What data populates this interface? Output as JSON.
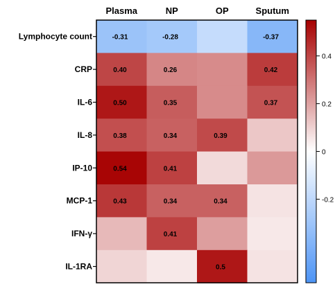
{
  "chart_data": {
    "type": "heatmap",
    "columns": [
      "Plasma",
      "NP",
      "OP",
      "Sputum"
    ],
    "rows": [
      "Lymphocyte count",
      "CRP",
      "IL-6",
      "IL-8",
      "IP-10",
      "MCP-1",
      "IFN-γ",
      "IL-1RA"
    ],
    "values": [
      [
        -0.31,
        -0.28,
        -0.18,
        -0.37
      ],
      [
        0.4,
        0.26,
        0.25,
        0.42
      ],
      [
        0.5,
        0.35,
        0.25,
        0.37
      ],
      [
        0.38,
        0.34,
        0.39,
        0.12
      ],
      [
        0.54,
        0.41,
        0.08,
        0.22
      ],
      [
        0.43,
        0.34,
        0.34,
        0.06
      ],
      [
        0.15,
        0.41,
        0.21,
        0.05
      ],
      [
        0.09,
        0.05,
        0.5,
        0.06
      ]
    ],
    "cell_labels": [
      [
        "-0.31",
        "-0.28",
        "",
        "-0.37"
      ],
      [
        "0.40",
        "0.26",
        "",
        "0.42"
      ],
      [
        "0.50",
        "0.35",
        "",
        "0.37"
      ],
      [
        "0.38",
        "0.34",
        "0.39",
        ""
      ],
      [
        "0.54",
        "0.41",
        "",
        ""
      ],
      [
        "0.43",
        "0.34",
        "0.34",
        ""
      ],
      [
        "",
        "0.41",
        "",
        ""
      ],
      [
        "",
        "",
        "0.5",
        ""
      ]
    ],
    "colorbar": {
      "ticks": [
        0.4,
        0.2,
        0,
        -0.2
      ],
      "tick_labels": [
        "0.4",
        "0.2",
        "0",
        "-0.2"
      ],
      "range": [
        -0.55,
        0.55
      ]
    },
    "colors": {
      "negative": "#4d94f5",
      "neutral": "#ffffff",
      "positive": "#a60000",
      "border": "#000000"
    }
  }
}
